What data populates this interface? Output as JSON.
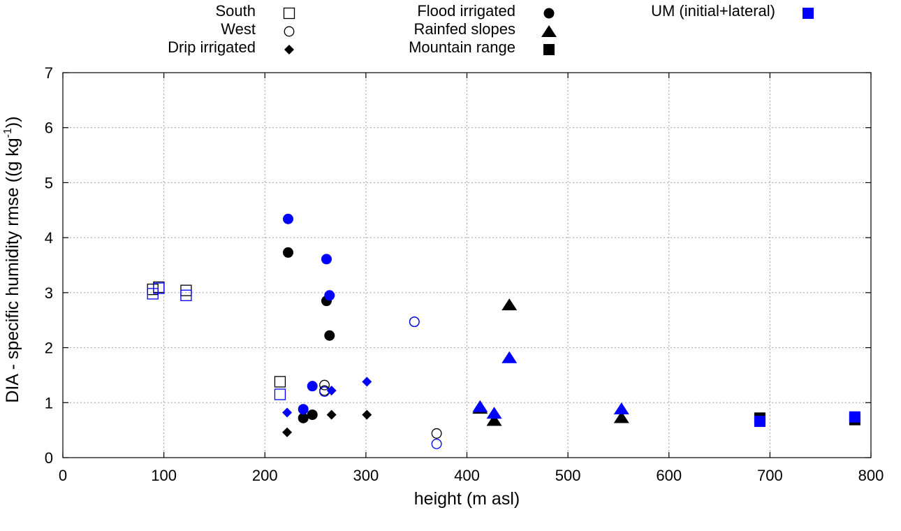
{
  "chart_data": {
    "type": "scatter",
    "title": "",
    "xlabel": "height (m asl)",
    "ylabel": {
      "main": "DIA - specific humidity rmse ((g kg",
      "sup": "-1",
      "end": "))"
    },
    "xlim": [
      0,
      800
    ],
    "ylim": [
      0,
      7
    ],
    "xticks": [
      0,
      100,
      200,
      300,
      400,
      500,
      600,
      700,
      800
    ],
    "yticks": [
      0,
      1,
      2,
      3,
      4,
      5,
      6,
      7
    ],
    "grid": true,
    "legend_position": "top",
    "colors": {
      "black": "#000000",
      "blue": "#0000ff"
    },
    "legend": [
      {
        "label": "South",
        "marker": "square-open",
        "color": "black",
        "column": "left"
      },
      {
        "label": "West",
        "marker": "circle-open",
        "color": "black",
        "column": "left"
      },
      {
        "label": "Drip irrigated",
        "marker": "diamond",
        "color": "black",
        "column": "left"
      },
      {
        "label": "Flood irrigated",
        "marker": "circle",
        "color": "black",
        "column": "middle"
      },
      {
        "label": "Rainfed slopes",
        "marker": "triangle",
        "color": "black",
        "column": "middle"
      },
      {
        "label": "Mountain range",
        "marker": "square",
        "color": "black",
        "column": "middle"
      },
      {
        "label": "UM (initial+lateral)",
        "marker": "square",
        "color": "blue",
        "column": "right"
      }
    ],
    "series": [
      {
        "name": "South",
        "marker": "square-open",
        "color": "black",
        "points": [
          [
            89,
            3.06
          ],
          [
            95,
            3.1
          ],
          [
            122,
            3.04
          ],
          [
            215,
            1.38
          ]
        ]
      },
      {
        "name": "South UM",
        "marker": "square-open",
        "color": "blue",
        "points": [
          [
            89,
            2.98
          ],
          [
            95,
            3.08
          ],
          [
            122,
            2.95
          ],
          [
            215,
            1.15
          ]
        ]
      },
      {
        "name": "West",
        "marker": "circle-open",
        "color": "black",
        "points": [
          [
            259,
            1.32
          ],
          [
            259,
            1.22
          ],
          [
            348,
            2.47
          ],
          [
            370,
            0.44
          ]
        ]
      },
      {
        "name": "West UM",
        "marker": "circle-open",
        "color": "blue",
        "points": [
          [
            259,
            1.2
          ],
          [
            348,
            2.47
          ],
          [
            370,
            0.25
          ]
        ]
      },
      {
        "name": "Drip irrigated",
        "marker": "diamond",
        "color": "black",
        "points": [
          [
            222,
            0.46
          ],
          [
            266,
            0.78
          ],
          [
            301,
            0.78
          ]
        ]
      },
      {
        "name": "Drip irrigated UM",
        "marker": "diamond",
        "color": "blue",
        "points": [
          [
            222,
            0.82
          ],
          [
            266,
            1.22
          ],
          [
            301,
            1.38
          ]
        ]
      },
      {
        "name": "Flood irrigated",
        "marker": "circle",
        "color": "black",
        "points": [
          [
            223,
            3.73
          ],
          [
            261,
            2.85
          ],
          [
            264,
            2.22
          ],
          [
            238,
            0.72
          ],
          [
            247,
            0.78
          ]
        ]
      },
      {
        "name": "Flood irrigated UM",
        "marker": "circle",
        "color": "blue",
        "points": [
          [
            223,
            4.34
          ],
          [
            261,
            3.61
          ],
          [
            264,
            2.95
          ],
          [
            247,
            1.3
          ],
          [
            238,
            0.88
          ]
        ]
      },
      {
        "name": "Rainfed slopes",
        "marker": "triangle",
        "color": "black",
        "points": [
          [
            442,
            2.78
          ],
          [
            413,
            0.9
          ],
          [
            427,
            0.68
          ],
          [
            553,
            0.73
          ]
        ]
      },
      {
        "name": "Rainfed slopes UM",
        "marker": "triangle",
        "color": "blue",
        "points": [
          [
            442,
            1.82
          ],
          [
            413,
            0.93
          ],
          [
            427,
            0.81
          ],
          [
            553,
            0.89
          ]
        ]
      },
      {
        "name": "Mountain range",
        "marker": "square",
        "color": "black",
        "points": [
          [
            690,
            0.72
          ],
          [
            784,
            0.69
          ]
        ]
      },
      {
        "name": "UM (initial+lateral)",
        "marker": "square",
        "color": "blue",
        "points": [
          [
            690,
            0.66
          ],
          [
            784,
            0.74
          ]
        ]
      }
    ]
  }
}
